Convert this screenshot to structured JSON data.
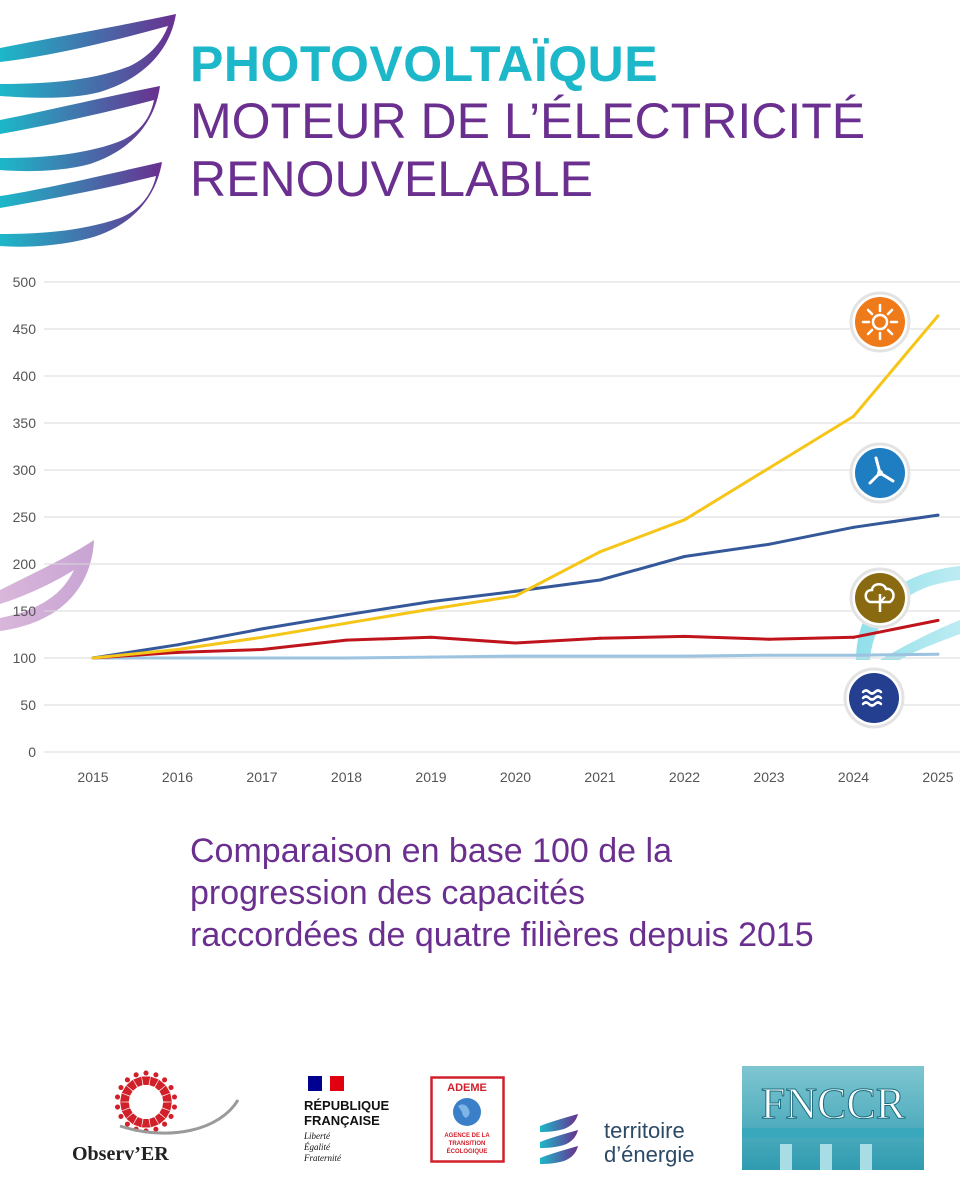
{
  "header": {
    "title_line1": "PHOTOVOLTAÏQUE",
    "title_line2": "MOTEUR DE L’ÉLECTRICITÉ",
    "title_line3": "RENOUVELABLE"
  },
  "caption": {
    "line1": "Comparaison en base 100 de la",
    "line2": "progression des capacités",
    "line3": "raccordées de quatre filières depuis 2015"
  },
  "colors": {
    "accent_teal": "#1cb8c9",
    "accent_purple": "#6a2f8f",
    "solar": "#f5c518",
    "wind": "#34589a",
    "bio": "#c0141c",
    "hydro": "#9cc3e0"
  },
  "chart_data": {
    "type": "line",
    "x": [
      2015,
      2016,
      2017,
      2018,
      2019,
      2020,
      2021,
      2022,
      2023,
      2024,
      2025
    ],
    "ylim": [
      0,
      500
    ],
    "yticks": [
      0,
      50,
      100,
      150,
      200,
      250,
      300,
      350,
      400,
      450,
      500
    ],
    "grid": true,
    "series": [
      {
        "values": [
          100,
          109,
          122,
          137,
          152,
          166,
          213,
          247,
          302,
          357,
          464
        ],
        "color": "#f5c518",
        "icon": "sun-icon"
      },
      {
        "values": [
          100,
          114,
          131,
          146,
          160,
          171,
          183,
          208,
          221,
          239,
          252
        ],
        "color": "#34589a",
        "icon": "wind-turbine-icon"
      },
      {
        "values": [
          100,
          106,
          109,
          119,
          122,
          116,
          121,
          123,
          120,
          122,
          140
        ],
        "color": "#c0141c",
        "icon": "tree-icon"
      },
      {
        "values": [
          100,
          100,
          100,
          100,
          101,
          102,
          102,
          102,
          103,
          103,
          104
        ],
        "color": "#9cc3e0",
        "icon": "waves-icon"
      }
    ]
  },
  "logos": {
    "observer": "Observ’ER",
    "rf_line1": "RÉPUBLIQUE",
    "rf_line2": "FRANÇAISE",
    "rf_motto1": "Liberté",
    "rf_motto2": "Égalité",
    "rf_motto3": "Fraternité",
    "ademe": "ADEME",
    "ademe_sub1": "AGENCE DE LA",
    "ademe_sub2": "TRANSITION",
    "ademe_sub3": "ÉCOLOGIQUE",
    "te_line1": "territoire",
    "te_line2": "d’énergie",
    "fnccr": "FNCCR"
  }
}
